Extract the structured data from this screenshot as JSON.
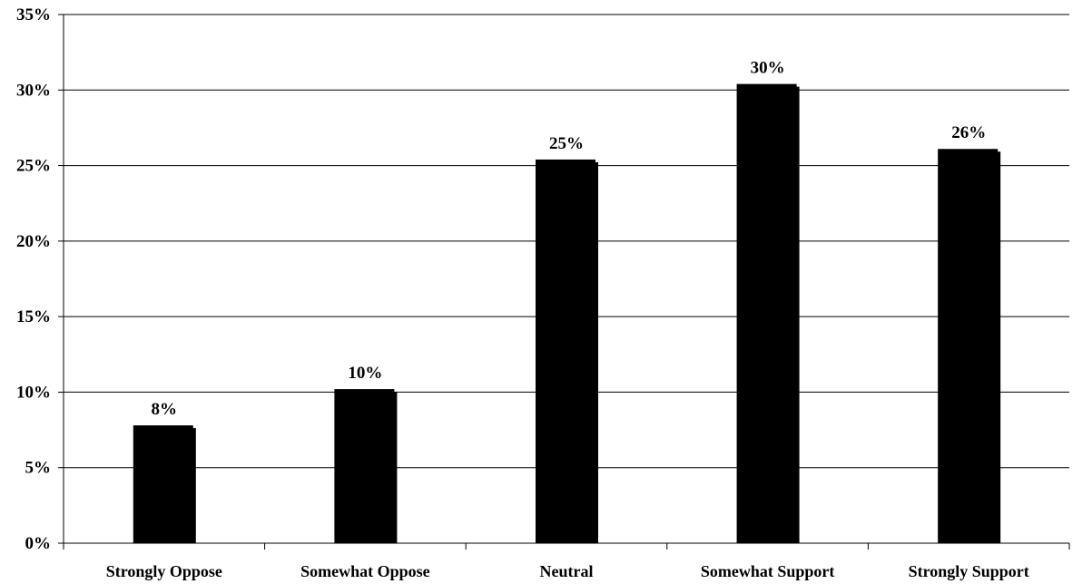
{
  "chart_data": {
    "type": "bar",
    "title": "",
    "xlabel": "",
    "ylabel": "",
    "categories": [
      "Strongly Oppose",
      "Somewhat Oppose",
      "Neutral",
      "Somewhat Support",
      "Strongly Support"
    ],
    "values": [
      7.8,
      10.2,
      25.4,
      30.4,
      26.1
    ],
    "data_labels": [
      "8%",
      "10%",
      "25%",
      "30%",
      "26%"
    ],
    "ylim": [
      0,
      35
    ],
    "yticks": [
      0,
      5,
      10,
      15,
      20,
      25,
      30,
      35
    ],
    "ytick_labels": [
      "0%",
      "5%",
      "10%",
      "15%",
      "20%",
      "25%",
      "30%",
      "35%"
    ],
    "grid": true,
    "legend": "none",
    "colors": {
      "bar": "#000000",
      "grid": "#000000",
      "background": "#ffffff"
    }
  }
}
